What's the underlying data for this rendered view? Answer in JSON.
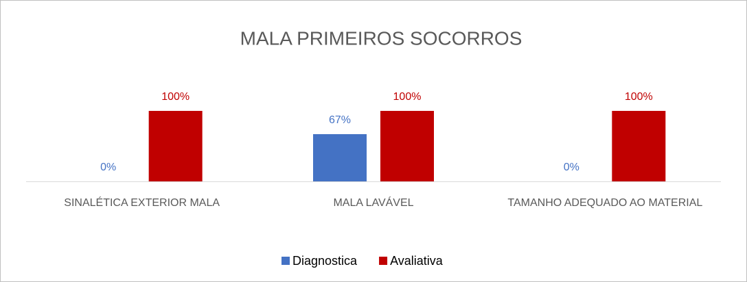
{
  "chart_data": {
    "type": "bar",
    "title": "MALA PRIMEIROS SOCORROS",
    "categories": [
      "SINALÉTICA EXTERIOR MALA",
      "MALA LAVÁVEL",
      "TAMANHO ADEQUADO AO MATERIAL"
    ],
    "series": [
      {
        "name": "Diagnostica",
        "color": "#4472c4",
        "values": [
          0,
          67,
          0
        ],
        "value_labels": [
          "0%",
          "67%",
          "0%"
        ]
      },
      {
        "name": "Avaliativa",
        "color": "#c00000",
        "values": [
          100,
          100,
          100
        ],
        "value_labels": [
          "100%",
          "100%",
          "100%"
        ]
      }
    ],
    "legend": "bottom"
  }
}
